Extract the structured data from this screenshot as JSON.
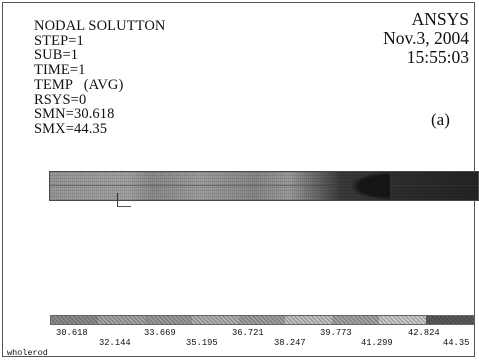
{
  "info_block": {
    "title": "NODAL SOLUTTON",
    "step": "STEP=1",
    "sub": "SUB=1",
    "time": "TIME=1",
    "temp": "TEMP   (AVG)",
    "rsys": "RSYS=0",
    "smn": "SMN=30.618",
    "smx": "SMX=44.35"
  },
  "header_right": {
    "brand": "ANSYS",
    "date": "Nov.3, 2004",
    "time": "15:55:03"
  },
  "panel_tag": "(a)",
  "legend": {
    "colors": [
      "#8c8c8c",
      "#a6a6a6",
      "#9a9a9a",
      "#b0b0b0",
      "#9f9f9f",
      "#c2c2c2",
      "#a2a2a2",
      "#c9c9c9",
      "#5b5b5b"
    ],
    "labels_top": [
      "30.618",
      "33.669",
      "36.721",
      "39.773",
      "42.824"
    ],
    "labels_bottom": [
      "32.144",
      "35.195",
      "38.247",
      "41.299",
      "44.35"
    ]
  },
  "footer_label": "wholerod"
}
